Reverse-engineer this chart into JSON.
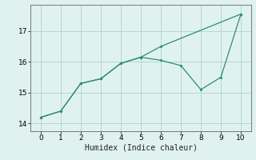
{
  "line1_x": [
    0,
    1,
    2,
    3,
    4,
    5,
    6,
    10
  ],
  "line1_y": [
    14.2,
    14.4,
    15.3,
    15.45,
    15.95,
    16.15,
    16.5,
    17.55
  ],
  "line2_x": [
    0,
    1,
    2,
    3,
    4,
    5,
    6,
    7,
    8,
    9,
    10
  ],
  "line2_y": [
    14.2,
    14.4,
    15.3,
    15.45,
    15.95,
    16.15,
    16.05,
    15.88,
    15.1,
    15.5,
    17.55
  ],
  "line_color": "#2d8b7b",
  "bg_color": "#dff2ee",
  "grid_color": "#b2d9d2",
  "xlabel": "Humidex (Indice chaleur)",
  "xlim": [
    -0.5,
    10.5
  ],
  "ylim": [
    13.75,
    17.85
  ],
  "yticks": [
    14,
    15,
    16,
    17
  ],
  "xticks": [
    0,
    1,
    2,
    3,
    4,
    5,
    6,
    7,
    8,
    9,
    10
  ],
  "xlabel_fontsize": 7,
  "tick_fontsize": 6.5,
  "tick_color": "#444444",
  "spine_color": "#777777"
}
